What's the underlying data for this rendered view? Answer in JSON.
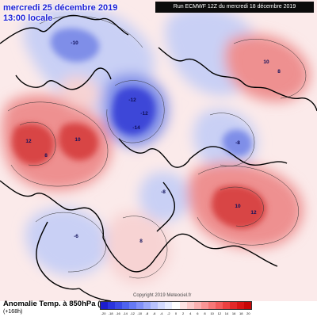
{
  "header": {
    "date_title": "mercredi 25 décembre 2019",
    "time_title": "13:00 locale",
    "run_info": "Run ECMWF 12Z du mercredi 18 décembre 2019"
  },
  "footer": {
    "title": "Anomalie Temp. à 850hPa (°C)",
    "lead": "(+168h)",
    "copyright": "Copyright 2019 Meteociel.fr"
  },
  "legend": {
    "colors": [
      "#1d1dcc",
      "#2a34dd",
      "#3b4ae6",
      "#4e62ee",
      "#6679f3",
      "#8190f7",
      "#9daafa",
      "#b8c2fc",
      "#d2d9fd",
      "#e8ecfe",
      "#ffffff",
      "#fde3e3",
      "#fccaca",
      "#fbb0b0",
      "#f99595",
      "#f57878",
      "#f15c5c",
      "#ea4040",
      "#e22828",
      "#d81414",
      "#c80606"
    ],
    "ticks": [
      "-20",
      "-18",
      "-16",
      "-14",
      "-12",
      "-10",
      "-8",
      "-6",
      "-4",
      "-2",
      "0",
      "2",
      "4",
      "6",
      "8",
      "10",
      "12",
      "14",
      "16",
      "18",
      "20"
    ]
  },
  "map": {
    "colors": {
      "cold_strong": "#3c46d8",
      "cold_mid": "#7f8ee8",
      "cold_light": "#c9d0f5",
      "warm_light": "#f7d3d3",
      "warm_mid": "#ee9090",
      "warm_strong": "#d84444",
      "coastline": "#000000",
      "isoline": "#333333"
    },
    "value_labels": [
      "-12",
      "-14",
      "-12",
      "-10",
      "-8",
      "12",
      "10",
      "8",
      "10",
      "12",
      "10",
      "8",
      "-6",
      "-8",
      "8"
    ]
  }
}
